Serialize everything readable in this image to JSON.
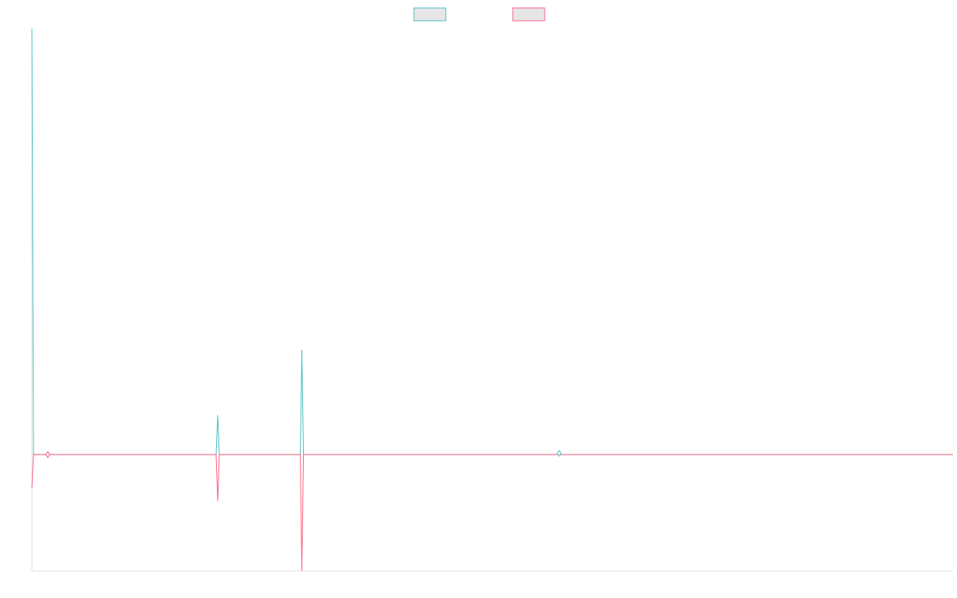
{
  "colors": {
    "series_a": "#4bc0c0",
    "series_b": "#ff6384",
    "legend_fill": "#e6e6e6",
    "axis": "#e0e0e0"
  },
  "chart_data": {
    "type": "line",
    "title": "",
    "xlabel": "",
    "ylabel": "",
    "grid": false,
    "legend_position": "top-center",
    "xlim": [
      0,
      580
    ],
    "ylim": [
      -1.0,
      3.66
    ],
    "series": [
      {
        "color": "#4bc0c0",
        "x": [
          0,
          1,
          10,
          116,
          117,
          118,
          169,
          170,
          171,
          331,
          332,
          333,
          580
        ],
        "y": [
          3.66,
          0,
          0,
          0,
          0.34,
          0,
          0,
          0.9,
          0,
          0,
          0.01,
          0,
          0
        ],
        "markers": [
          {
            "x": 10,
            "y": 0
          },
          {
            "x": 332,
            "y": 0.01
          }
        ]
      },
      {
        "color": "#ff6384",
        "x": [
          0,
          1,
          10,
          116,
          117,
          118,
          169,
          170,
          171,
          580
        ],
        "y": [
          -0.29,
          0,
          0,
          0,
          -0.4,
          0,
          0,
          -1.0,
          0,
          0
        ],
        "markers": [
          {
            "x": 10,
            "y": 0
          }
        ]
      }
    ]
  }
}
